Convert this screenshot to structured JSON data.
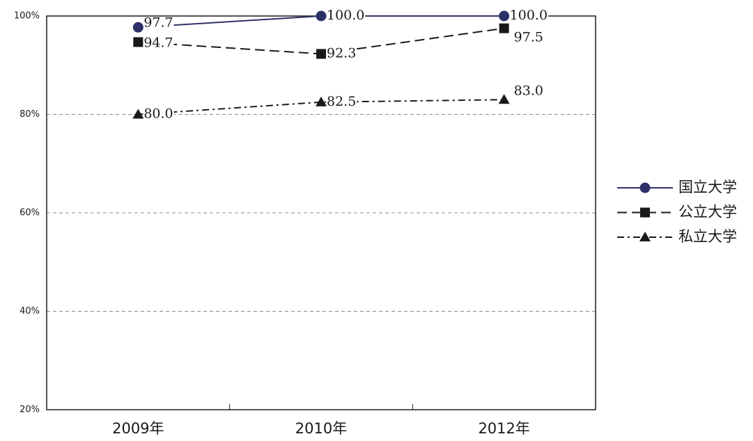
{
  "chart_data": {
    "type": "line",
    "categories": [
      "2009年",
      "2010年",
      "2012年"
    ],
    "series": [
      {
        "name": "国立大学",
        "color": "#2e3168",
        "marker": "circle",
        "line": "solid",
        "values": [
          97.7,
          100,
          100
        ],
        "value_labels": [
          "97.7",
          "100.0",
          "100.0"
        ]
      },
      {
        "name": "公立大学",
        "color": "#1a1a1a",
        "marker": "square",
        "line": "dashed",
        "values": [
          94.7,
          92.3,
          97.5
        ],
        "value_labels": [
          "94.7",
          "92.3",
          "97.5"
        ]
      },
      {
        "name": "私立大学",
        "color": "#1a1a1a",
        "marker": "triangle",
        "line": "dashdot",
        "values": [
          80,
          82.5,
          83
        ],
        "value_labels": [
          "80.0",
          "82.5",
          "83.0"
        ]
      }
    ],
    "ylim": [
      20,
      100
    ],
    "yticks": [
      {
        "value": 20,
        "label": "20%"
      },
      {
        "value": 40,
        "label": "40%"
      },
      {
        "value": 60,
        "label": "60%"
      },
      {
        "value": 80,
        "label": "80%"
      },
      {
        "value": 100,
        "label": "100%"
      }
    ],
    "grid": true,
    "legend": "right"
  }
}
